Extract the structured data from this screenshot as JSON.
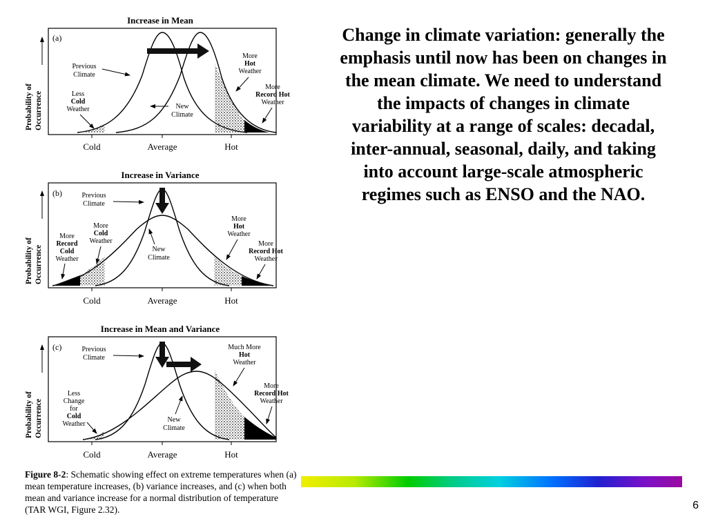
{
  "figure": {
    "panels": [
      {
        "title": "Increase in Mean",
        "panel_label": "(a)",
        "y_axis_label": [
          "Probability of",
          "Occurrence"
        ],
        "x_ticks": [
          "Cold",
          "Average",
          "Hot"
        ],
        "annotations": {
          "previous_climate": [
            "Previous",
            "Climate"
          ],
          "new_climate": [
            "New",
            "Climate"
          ],
          "left_tail": [
            "Less",
            "Cold",
            "Weather"
          ],
          "right_more": [
            "More",
            "Hot",
            "Weather"
          ],
          "right_record": [
            "More",
            "Record Hot",
            "Weather"
          ]
        }
      },
      {
        "title": "Increase in Variance",
        "panel_label": "(b)",
        "y_axis_label": [
          "Probability of",
          "Occurrence"
        ],
        "x_ticks": [
          "Cold",
          "Average",
          "Hot"
        ],
        "annotations": {
          "previous_climate": [
            "Previous",
            "Climate"
          ],
          "new_climate": [
            "New",
            "Climate"
          ],
          "left_more": [
            "More",
            "Cold",
            "Weather"
          ],
          "left_record": [
            "More",
            "Record",
            "Cold",
            "Weather"
          ],
          "right_more": [
            "More",
            "Hot",
            "Weather"
          ],
          "right_record": [
            "More",
            "Record Hot",
            "Weather"
          ]
        }
      },
      {
        "title": "Increase in Mean and Variance",
        "panel_label": "(c)",
        "y_axis_label": [
          "Probability of",
          "Occurrence"
        ],
        "x_ticks": [
          "Cold",
          "Average",
          "Hot"
        ],
        "annotations": {
          "previous_climate": [
            "Previous",
            "Climate"
          ],
          "new_climate": [
            "New",
            "Climate"
          ],
          "left_tail": [
            "Less",
            "Change",
            "for",
            "Cold",
            "Weather"
          ],
          "right_more": [
            "Much More",
            "Hot",
            "Weather"
          ],
          "right_record": [
            "More",
            "Record Hot",
            "Weather"
          ]
        }
      }
    ],
    "caption_label": "Figure 8-2",
    "caption_text": ": Schematic showing effect on extreme temperatures when (a) mean temperature increases, (b) variance increases, and (c) when both mean and variance increase for a normal distribution of temperature (TAR WGI, Figure 2.32)."
  },
  "slide_text": "Change in climate variation: generally the emphasis until now has been on changes in the mean climate.  We need to understand the impacts of changes in climate variability at a range of scales: decadal, inter-annual, seasonal, daily, and taking into account large-scale atmospheric regimes such as ENSO and the NAO.",
  "page_number": "6",
  "colors": {
    "rainbow": [
      "#f2ee00",
      "#00cc00",
      "#00d0e0",
      "#0070ff",
      "#9a0aa0"
    ]
  }
}
